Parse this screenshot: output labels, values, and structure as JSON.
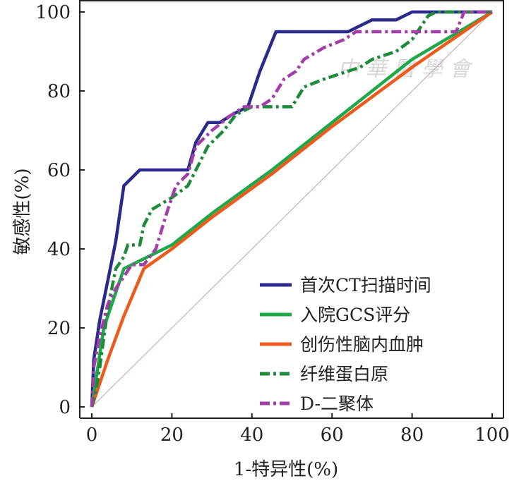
{
  "chart_data": {
    "type": "line",
    "title": "",
    "xlabel": "1-特异性(%)",
    "ylabel": "敏感性(%)",
    "xlim": [
      0,
      100
    ],
    "ylim": [
      0,
      100
    ],
    "xticks": [
      "0",
      "20",
      "40",
      "60",
      "80",
      "100"
    ],
    "yticks": [
      "0",
      "20",
      "40",
      "60",
      "80",
      "100"
    ],
    "legend_position": "bottom-right",
    "reference_line": {
      "x": [
        0,
        100
      ],
      "y": [
        0,
        100
      ],
      "color": "#c8a0a0"
    },
    "series": [
      {
        "name": "首次CT扫描时间",
        "color": "#2a2a8c",
        "dash": "solid",
        "x": [
          0,
          0.5,
          2,
          4,
          6,
          8,
          12,
          20,
          24,
          26,
          29,
          32,
          35,
          39,
          42,
          46,
          55,
          64,
          70,
          76,
          80,
          86,
          91,
          100
        ],
        "y": [
          0,
          12,
          22,
          32,
          42,
          56,
          60,
          60,
          60,
          67,
          72,
          72,
          74,
          76,
          85,
          95,
          95,
          95,
          98,
          98,
          100,
          100,
          100,
          100
        ]
      },
      {
        "name": "入院GCS评分",
        "color": "#1ea84a",
        "dash": "solid",
        "x": [
          0,
          3,
          8,
          12,
          20,
          30,
          45,
          60,
          80,
          100
        ],
        "y": [
          0,
          20,
          35,
          37,
          41,
          49,
          60,
          72,
          88,
          100
        ]
      },
      {
        "name": "创伤性脑内血肿",
        "color": "#ee5a1c",
        "dash": "solid",
        "x": [
          0,
          4,
          8,
          13,
          20,
          30,
          45,
          60,
          80,
          100
        ],
        "y": [
          0,
          12,
          23,
          35,
          40,
          48,
          59,
          71,
          86,
          100
        ]
      },
      {
        "name": "纤维蛋白原",
        "color": "#1e8a3a",
        "dash": "dashdot",
        "x": [
          0,
          1,
          2,
          4,
          6,
          8,
          9,
          12,
          13,
          15,
          20,
          24,
          25,
          29,
          33,
          36,
          40,
          42,
          50,
          53,
          58,
          61,
          67,
          70,
          76,
          80,
          84,
          86,
          90,
          100
        ],
        "y": [
          0,
          4,
          10,
          25,
          35,
          38,
          41,
          41,
          46,
          50,
          53,
          56,
          58,
          66,
          70,
          74,
          76,
          76,
          76,
          81,
          83,
          84,
          86,
          88,
          90,
          93,
          99,
          100,
          100,
          100
        ]
      },
      {
        "name": "D-二聚体",
        "color": "#a23ea8",
        "dash": "dashdot",
        "x": [
          0,
          0.5,
          2,
          4,
          6,
          8,
          10,
          13,
          16,
          19,
          21,
          24,
          26,
          30,
          35,
          38,
          42,
          45,
          48,
          51,
          53,
          58,
          63,
          66,
          70,
          76,
          82,
          86,
          91,
          93,
          100
        ],
        "y": [
          0,
          10,
          18,
          26,
          30,
          33,
          36,
          36,
          40,
          50,
          56,
          59,
          66,
          70,
          74,
          76,
          76,
          78,
          83,
          85,
          88,
          91,
          93,
          95,
          95,
          95,
          95,
          95,
          95,
          100,
          100
        ]
      }
    ]
  }
}
